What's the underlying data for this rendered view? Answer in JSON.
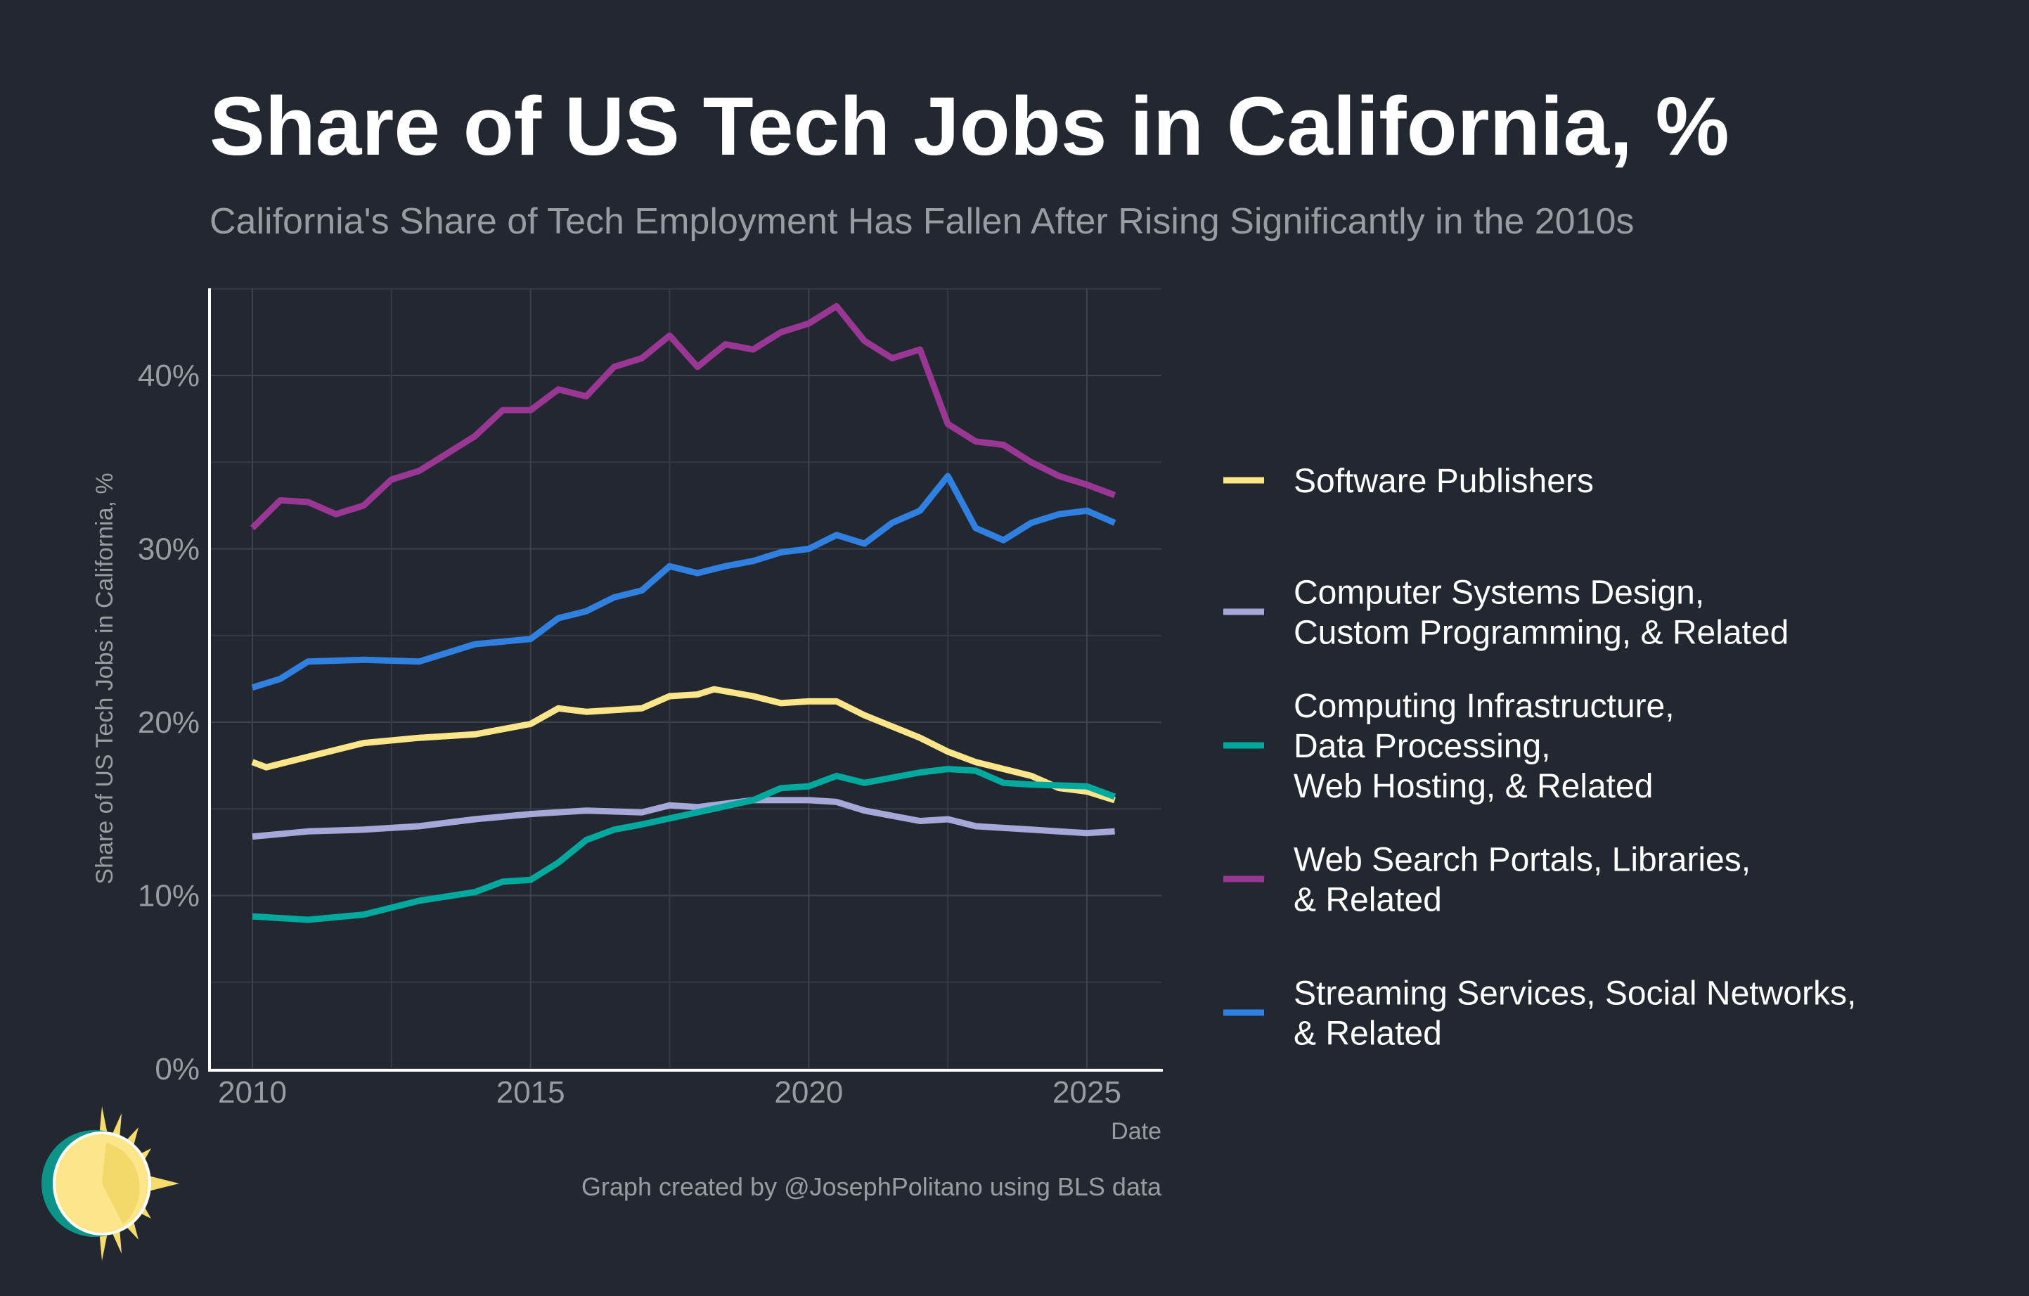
{
  "chart_data": {
    "type": "line",
    "title": "Share of US Tech Jobs in California, %",
    "subtitle": "California's Share of Tech Employment Has Fallen After Rising Significantly in the 2010s",
    "xlabel": "Date",
    "ylabel": "Share of US Tech Jobs in California, %",
    "xlim": [
      2009.6,
      2026.4
    ],
    "ylim": [
      0,
      45
    ],
    "xticks": [
      2010,
      2015,
      2020,
      2025
    ],
    "xtick_labels": [
      "2010",
      "2015",
      "2020",
      "2025"
    ],
    "yticks": [
      0,
      10,
      20,
      30,
      40
    ],
    "ytick_labels": [
      "0%",
      "10%",
      "20%",
      "30%",
      "40%"
    ],
    "grid": true,
    "legend_position": "right",
    "series": [
      {
        "name": "Software Publishers",
        "legend_lines": [
          "Software Publishers"
        ],
        "color": "#fde68a",
        "x": [
          2010,
          2010.25,
          2011,
          2012,
          2013,
          2014,
          2015,
          2015.5,
          2016,
          2017,
          2017.5,
          2018,
          2018.3,
          2019,
          2019.5,
          2020,
          2020.5,
          2021,
          2022,
          2022.5,
          2023,
          2024,
          2024.5,
          2025,
          2025.5
        ],
        "values": [
          17.7,
          17.4,
          18.0,
          18.8,
          19.1,
          19.3,
          19.9,
          20.8,
          20.6,
          20.8,
          21.5,
          21.6,
          21.9,
          21.5,
          21.1,
          21.2,
          21.2,
          20.4,
          19.1,
          18.3,
          17.7,
          16.9,
          16.2,
          16.0,
          15.5
        ]
      },
      {
        "name": "Computer Systems Design, Custom Programming, & Related",
        "legend_lines": [
          "Computer Systems Design,",
          "Custom Programming, & Related"
        ],
        "color": "#a5a8d8",
        "x": [
          2010,
          2011,
          2012,
          2013,
          2014,
          2015,
          2016,
          2017,
          2017.5,
          2018,
          2019,
          2020,
          2020.5,
          2021,
          2022,
          2022.5,
          2023,
          2024,
          2025,
          2025.5
        ],
        "values": [
          13.4,
          13.7,
          13.8,
          14.0,
          14.4,
          14.7,
          14.9,
          14.8,
          15.2,
          15.1,
          15.5,
          15.5,
          15.4,
          14.9,
          14.3,
          14.4,
          14.0,
          13.8,
          13.6,
          13.7
        ]
      },
      {
        "name": "Computing Infrastructure, Data Processing, Web Hosting, & Related",
        "legend_lines": [
          "Computing Infrastructure,",
          "Data Processing,",
          "Web Hosting, & Related"
        ],
        "color": "#00a99d",
        "x": [
          2010,
          2011,
          2012,
          2013,
          2014,
          2014.5,
          2015,
          2015.5,
          2016,
          2016.5,
          2017,
          2018,
          2019,
          2019.5,
          2020,
          2020.5,
          2021,
          2022,
          2022.5,
          2023,
          2023.5,
          2024,
          2025,
          2025.5
        ],
        "values": [
          8.8,
          8.6,
          8.9,
          9.7,
          10.2,
          10.8,
          10.9,
          11.9,
          13.2,
          13.8,
          14.1,
          14.8,
          15.5,
          16.2,
          16.3,
          16.9,
          16.5,
          17.1,
          17.3,
          17.2,
          16.5,
          16.4,
          16.3,
          15.7
        ]
      },
      {
        "name": "Web Search Portals, Libraries, & Related",
        "legend_lines": [
          "Web Search Portals, Libraries,",
          "& Related"
        ],
        "color": "#9a3794",
        "x": [
          2010,
          2010.5,
          2011,
          2011.5,
          2012,
          2012.5,
          2013,
          2013.5,
          2014,
          2014.5,
          2015,
          2015.5,
          2016,
          2016.5,
          2017,
          2017.5,
          2018,
          2018.5,
          2019,
          2019.5,
          2020,
          2020.5,
          2021,
          2021.5,
          2022,
          2022.5,
          2023,
          2023.5,
          2024,
          2024.5,
          2025,
          2025.5
        ],
        "values": [
          31.2,
          32.8,
          32.7,
          32.0,
          32.5,
          34.0,
          34.5,
          35.5,
          36.5,
          38.0,
          38.0,
          39.2,
          38.8,
          40.5,
          41.0,
          42.3,
          40.5,
          41.8,
          41.5,
          42.5,
          43.0,
          44.0,
          42.0,
          41.0,
          41.5,
          37.2,
          36.2,
          36.0,
          35.0,
          34.2,
          33.7,
          33.1
        ]
      },
      {
        "name": "Streaming Services, Social Networks, & Related",
        "legend_lines": [
          "Streaming Services, Social Networks,",
          "& Related"
        ],
        "color": "#2f80e0",
        "x": [
          2010,
          2010.5,
          2011,
          2012,
          2013,
          2013.5,
          2014,
          2015,
          2015.5,
          2016,
          2016.5,
          2017,
          2017.5,
          2018,
          2018.5,
          2019,
          2019.5,
          2020,
          2020.5,
          2021,
          2021.5,
          2022,
          2022.5,
          2023,
          2023.5,
          2024,
          2024.5,
          2025,
          2025.5
        ],
        "values": [
          22.0,
          22.5,
          23.5,
          23.6,
          23.5,
          24.0,
          24.5,
          24.8,
          26.0,
          26.4,
          27.2,
          27.6,
          29.0,
          28.6,
          29.0,
          29.3,
          29.8,
          30.0,
          30.8,
          30.3,
          31.5,
          32.2,
          34.2,
          31.2,
          30.5,
          31.5,
          32.0,
          32.2,
          31.5
        ]
      }
    ],
    "credit": "Graph created by @JosephPolitano using BLS data"
  },
  "logo": {
    "icon": "sun-logo-icon"
  }
}
